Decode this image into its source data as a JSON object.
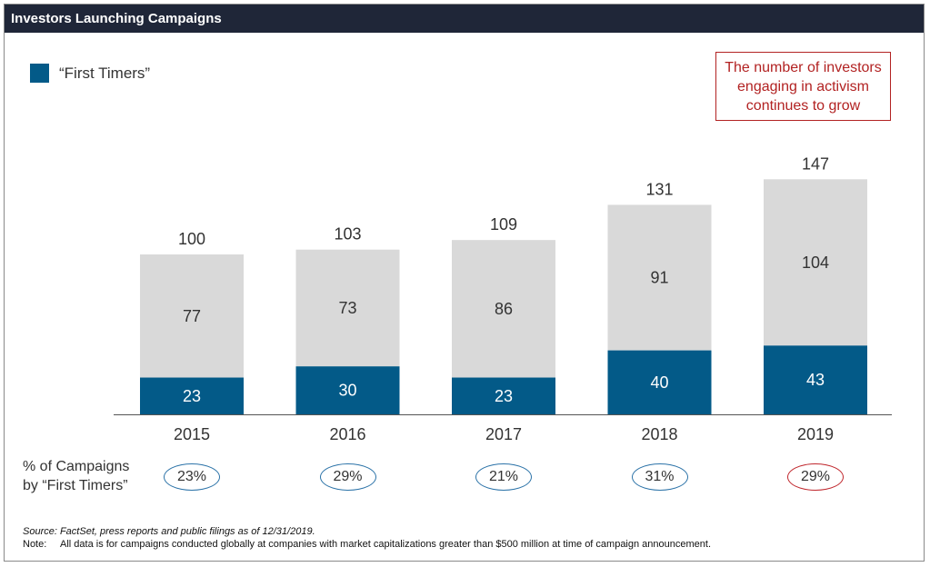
{
  "header": {
    "title": "Investors Launching Campaigns"
  },
  "legend": {
    "label": "“First Timers”",
    "color": "#035a88"
  },
  "callout": {
    "text": "The number of investors engaging in activism continues to grow",
    "color": "#b22222"
  },
  "chart_data": {
    "type": "bar",
    "stacked": true,
    "categories": [
      "2015",
      "2016",
      "2017",
      "2018",
      "2019"
    ],
    "series": [
      {
        "name": "“First Timers”",
        "color": "#035a88",
        "values": [
          23,
          30,
          23,
          40,
          43
        ]
      },
      {
        "color": "#d9d9d9",
        "values": [
          77,
          73,
          86,
          91,
          104
        ]
      }
    ],
    "totals": [
      100,
      103,
      109,
      131,
      147
    ],
    "ylim": [
      0,
      160
    ],
    "grid": false
  },
  "percent_row": {
    "label_line1": "% of Campaigns",
    "label_line2": "by “First Timers”",
    "values": [
      "23%",
      "29%",
      "21%",
      "31%",
      "29%"
    ],
    "highlight_index": 4,
    "border_color": "#2c73a8",
    "highlight_color": "#c0272d"
  },
  "footer": {
    "source": "Source: FactSet, press reports and public filings as of 12/31/2019.",
    "note_key": "Note:",
    "note_text": "All data is for campaigns conducted globally at companies with market capitalizations greater than $500 million at time of campaign announcement."
  }
}
